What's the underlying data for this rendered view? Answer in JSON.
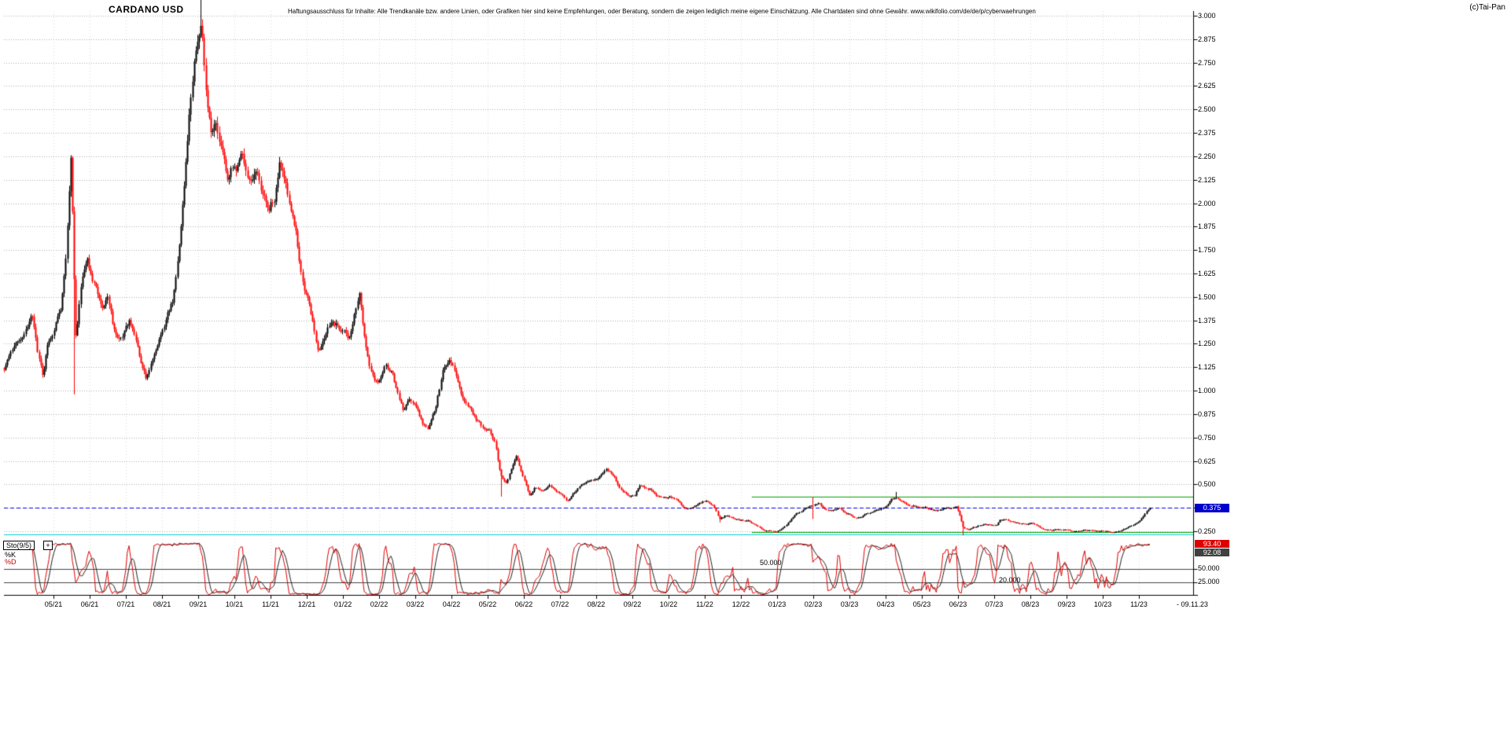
{
  "header": {
    "title": "CARDANO USD",
    "disclaimer": "Haftungsausschluss für Inhalte: Alle Trendkanäle bzw. andere Linien, oder Grafiken hier sind keine Empfehlungen, oder Beratung, sondern die zeigen lediglich meine eigene Einschätzung. Alle Chartdaten sind ohne Gewähr. www.wikifolio.com/de/de/p/cyberwaehrungen",
    "copyright": "(c)Tai-Pan"
  },
  "price_marker": {
    "value": "0.375",
    "color": "#0000cc"
  },
  "indicator": {
    "name": "Sto(9/5)",
    "add_button": "+",
    "legend_k": "%K",
    "legend_d": "%D",
    "k_legend_color": "#000000",
    "d_legend_color": "#cc0000",
    "k_value": "93.40",
    "d_value": "92.08",
    "k_badge_bg": "#dd0000",
    "d_badge_bg": "#404040",
    "k_color": "#dd0000",
    "d_color": "#222222",
    "axis_label_50": "50.000",
    "axis_label_25": "25.000",
    "inline_label_50": "50.000",
    "inline_label_20": "20.000"
  },
  "footer": {
    "date": "- 09.11.23"
  },
  "chart_data": {
    "type": "candlestick",
    "title": "CARDANO USD",
    "y_range": [
      0.25,
      3.0
    ],
    "y_tick_step": 0.125,
    "y_tick_labels": [
      "3.000",
      "2.875",
      "2.750",
      "2.625",
      "2.500",
      "2.375",
      "2.250",
      "2.125",
      "2.000",
      "1.875",
      "1.750",
      "1.625",
      "1.500",
      "1.375",
      "1.250",
      "1.125",
      "1.000",
      "0.875",
      "0.750",
      "0.625",
      "0.500",
      "0.375",
      "0.250"
    ],
    "x_tick_labels": [
      "05/21",
      "06/21",
      "07/21",
      "08/21",
      "09/21",
      "10/21",
      "11/21",
      "12/21",
      "01/22",
      "02/22",
      "03/22",
      "04/22",
      "05/22",
      "06/22",
      "07/22",
      "08/22",
      "09/22",
      "10/22",
      "11/22",
      "12/22",
      "01/23",
      "02/23",
      "03/23",
      "04/23",
      "05/23",
      "06/23",
      "07/23",
      "08/23",
      "09/23",
      "10/23",
      "11/23"
    ],
    "candle_up_color": "#000000",
    "candle_down_color": "#ff0000",
    "grid": true,
    "anchors_month_close": [
      [
        -1.37,
        1.12
      ],
      [
        -1.2,
        1.18
      ],
      [
        -1.05,
        1.22
      ],
      [
        -0.9,
        1.28
      ],
      [
        -0.75,
        1.35
      ],
      [
        -0.6,
        1.42
      ],
      [
        -0.45,
        1.22
      ],
      [
        -0.3,
        1.08
      ],
      [
        -0.15,
        1.28
      ],
      [
        0,
        1.32
      ],
      [
        0.2,
        1.45
      ],
      [
        0.35,
        1.78
      ],
      [
        0.48,
        2.28
      ],
      [
        0.55,
        1.7
      ],
      [
        0.62,
        1.25
      ],
      [
        0.72,
        1.52
      ],
      [
        0.82,
        1.62
      ],
      [
        0.92,
        1.7
      ],
      [
        1.05,
        1.6
      ],
      [
        1.2,
        1.52
      ],
      [
        1.35,
        1.45
      ],
      [
        1.5,
        1.52
      ],
      [
        1.65,
        1.35
      ],
      [
        1.8,
        1.26
      ],
      [
        1.95,
        1.32
      ],
      [
        2.1,
        1.38
      ],
      [
        2.25,
        1.28
      ],
      [
        2.4,
        1.14
      ],
      [
        2.55,
        1.05
      ],
      [
        2.7,
        1.15
      ],
      [
        2.85,
        1.25
      ],
      [
        3,
        1.32
      ],
      [
        3.15,
        1.4
      ],
      [
        3.3,
        1.48
      ],
      [
        3.45,
        1.75
      ],
      [
        3.6,
        2.05
      ],
      [
        3.75,
        2.5
      ],
      [
        3.9,
        2.8
      ],
      [
        4,
        2.88
      ],
      [
        4.08,
        2.96
      ],
      [
        4.2,
        2.6
      ],
      [
        4.35,
        2.4
      ],
      [
        4.5,
        2.44
      ],
      [
        4.65,
        2.26
      ],
      [
        4.8,
        2.12
      ],
      [
        4.92,
        2.18
      ],
      [
        5.05,
        2.14
      ],
      [
        5.2,
        2.22
      ],
      [
        5.4,
        2.12
      ],
      [
        5.6,
        2.18
      ],
      [
        5.8,
        2.02
      ],
      [
        5.95,
        1.98
      ],
      [
        6.1,
        2.04
      ],
      [
        6.25,
        2.28
      ],
      [
        6.4,
        2.1
      ],
      [
        6.55,
        1.96
      ],
      [
        6.7,
        1.84
      ],
      [
        6.85,
        1.6
      ],
      [
        7,
        1.5
      ],
      [
        7.15,
        1.35
      ],
      [
        7.3,
        1.22
      ],
      [
        7.5,
        1.28
      ],
      [
        7.7,
        1.38
      ],
      [
        7.9,
        1.34
      ],
      [
        8,
        1.35
      ],
      [
        8.15,
        1.3
      ],
      [
        8.3,
        1.4
      ],
      [
        8.45,
        1.55
      ],
      [
        8.6,
        1.3
      ],
      [
        8.75,
        1.1
      ],
      [
        8.9,
        1.05
      ],
      [
        9,
        1.05
      ],
      [
        9.15,
        1.15
      ],
      [
        9.35,
        1.1
      ],
      [
        9.5,
        1.0
      ],
      [
        9.65,
        0.9
      ],
      [
        9.85,
        0.95
      ],
      [
        10,
        0.92
      ],
      [
        10.2,
        0.83
      ],
      [
        10.35,
        0.8
      ],
      [
        10.55,
        0.9
      ],
      [
        10.75,
        1.1
      ],
      [
        10.95,
        1.18
      ],
      [
        11.15,
        1.08
      ],
      [
        11.3,
        0.98
      ],
      [
        11.5,
        0.92
      ],
      [
        11.7,
        0.85
      ],
      [
        11.9,
        0.79
      ],
      [
        12.05,
        0.78
      ],
      [
        12.2,
        0.72
      ],
      [
        12.35,
        0.55
      ],
      [
        12.5,
        0.5
      ],
      [
        12.65,
        0.58
      ],
      [
        12.8,
        0.65
      ],
      [
        13,
        0.52
      ],
      [
        13.15,
        0.44
      ],
      [
        13.3,
        0.48
      ],
      [
        13.5,
        0.47
      ],
      [
        13.7,
        0.5
      ],
      [
        13.9,
        0.46
      ],
      [
        14.05,
        0.45
      ],
      [
        14.2,
        0.42
      ],
      [
        14.4,
        0.46
      ],
      [
        14.6,
        0.5
      ],
      [
        14.8,
        0.52
      ],
      [
        15,
        0.52
      ],
      [
        15.15,
        0.55
      ],
      [
        15.3,
        0.57
      ],
      [
        15.5,
        0.53
      ],
      [
        15.7,
        0.47
      ],
      [
        15.9,
        0.44
      ],
      [
        16.05,
        0.45
      ],
      [
        16.2,
        0.5
      ],
      [
        16.35,
        0.48
      ],
      [
        16.5,
        0.47
      ],
      [
        16.7,
        0.44
      ],
      [
        16.9,
        0.43
      ],
      [
        17.05,
        0.43
      ],
      [
        17.2,
        0.41
      ],
      [
        17.4,
        0.38
      ],
      [
        17.6,
        0.37
      ],
      [
        17.8,
        0.4
      ],
      [
        17.95,
        0.41
      ],
      [
        18.1,
        0.4
      ],
      [
        18.25,
        0.38
      ],
      [
        18.4,
        0.315
      ],
      [
        18.55,
        0.33
      ],
      [
        18.75,
        0.32
      ],
      [
        18.9,
        0.315
      ],
      [
        19.05,
        0.31
      ],
      [
        19.2,
        0.305
      ],
      [
        19.4,
        0.28
      ],
      [
        19.6,
        0.26
      ],
      [
        19.8,
        0.252
      ],
      [
        19.95,
        0.245
      ],
      [
        20.1,
        0.26
      ],
      [
        20.3,
        0.3
      ],
      [
        20.5,
        0.34
      ],
      [
        20.7,
        0.365
      ],
      [
        20.9,
        0.38
      ],
      [
        21.05,
        0.39
      ],
      [
        21.15,
        0.4
      ],
      [
        21.3,
        0.37
      ],
      [
        21.5,
        0.36
      ],
      [
        21.7,
        0.37
      ],
      [
        21.9,
        0.35
      ],
      [
        22.05,
        0.34
      ],
      [
        22.15,
        0.32
      ],
      [
        22.3,
        0.33
      ],
      [
        22.5,
        0.35
      ],
      [
        22.7,
        0.36
      ],
      [
        22.9,
        0.38
      ],
      [
        23.05,
        0.39
      ],
      [
        23.15,
        0.415
      ],
      [
        23.3,
        0.435
      ],
      [
        23.5,
        0.41
      ],
      [
        23.7,
        0.39
      ],
      [
        23.9,
        0.38
      ],
      [
        24.05,
        0.38
      ],
      [
        24.2,
        0.365
      ],
      [
        24.4,
        0.36
      ],
      [
        24.6,
        0.375
      ],
      [
        24.8,
        0.37
      ],
      [
        24.95,
        0.375
      ],
      [
        25.05,
        0.33
      ],
      [
        25.15,
        0.26
      ],
      [
        25.3,
        0.26
      ],
      [
        25.5,
        0.275
      ],
      [
        25.7,
        0.29
      ],
      [
        25.9,
        0.285
      ],
      [
        26.05,
        0.28
      ],
      [
        26.15,
        0.305
      ],
      [
        26.3,
        0.315
      ],
      [
        26.5,
        0.3
      ],
      [
        26.7,
        0.29
      ],
      [
        26.9,
        0.29
      ],
      [
        27.05,
        0.29
      ],
      [
        27.2,
        0.275
      ],
      [
        27.35,
        0.26
      ],
      [
        27.55,
        0.26
      ],
      [
        27.75,
        0.26
      ],
      [
        27.95,
        0.255
      ],
      [
        28.1,
        0.25
      ],
      [
        28.3,
        0.248
      ],
      [
        28.5,
        0.252
      ],
      [
        28.7,
        0.25
      ],
      [
        28.9,
        0.25
      ],
      [
        29.1,
        0.248
      ],
      [
        29.3,
        0.245
      ],
      [
        29.5,
        0.25
      ],
      [
        29.7,
        0.27
      ],
      [
        29.9,
        0.29
      ],
      [
        30.0,
        0.3
      ],
      [
        30.1,
        0.325
      ],
      [
        30.2,
        0.35
      ],
      [
        30.3,
        0.372
      ]
    ],
    "spikes": [
      {
        "m": 0.58,
        "low": 0.98
      },
      {
        "m": 4.08,
        "high": 3.09
      },
      {
        "m": 12.38,
        "low": 0.435
      },
      {
        "m": 18.42,
        "low": 0.297
      },
      {
        "m": 21.0,
        "high": 0.43,
        "low": 0.315
      },
      {
        "m": 23.3,
        "high": 0.46
      },
      {
        "m": 25.15,
        "low": 0.228
      }
    ],
    "lines": {
      "current_price": {
        "value": 0.375,
        "color": "#0000ee",
        "style": "dashed",
        "full_width": true
      },
      "support_cyan": {
        "value": 0.232,
        "color": "#00cccc",
        "style": "solid",
        "full_width": true
      },
      "resistance_green": {
        "value": 0.435,
        "color": "#00a000",
        "style": "solid",
        "from_month": 19.3
      },
      "support_green": {
        "value": 0.245,
        "color": "#00a000",
        "style": "solid",
        "from_month": 19.3
      },
      "stoch_levels": [
        50,
        25
      ]
    },
    "stochastic": {
      "label": "Sto(9/5)",
      "k_period": 9,
      "d_period": 5,
      "k_last": 93.4,
      "d_last": 92.08
    }
  }
}
